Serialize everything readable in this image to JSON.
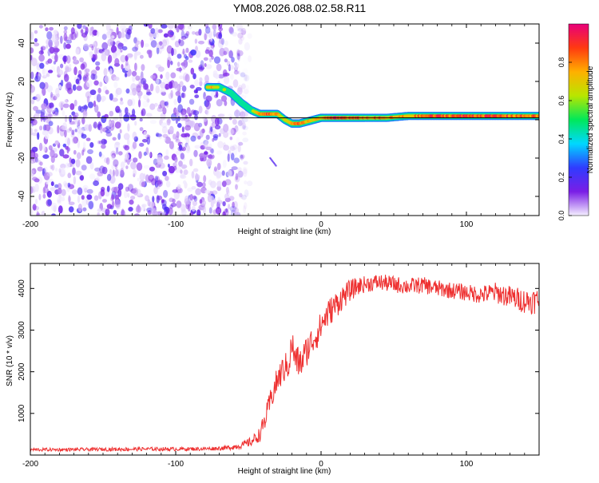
{
  "chart_data": [
    {
      "type": "heatmap",
      "title": "YM08.2026.088.02.58.R11",
      "xlabel": "Height of straight line (km)",
      "ylabel": "Frequency (Hz)",
      "xlim": [
        -200,
        150
      ],
      "ylim": [
        -50,
        50
      ],
      "xticks": [
        -200,
        -100,
        0,
        100
      ],
      "yticks": [
        -40,
        -20,
        0,
        20,
        40
      ],
      "xtick_labels": [
        "-200",
        "-100",
        "0",
        "100"
      ],
      "ytick_labels": [
        "-40",
        "-20",
        "0",
        "20",
        "40"
      ],
      "colorbar": {
        "label": "Normalized spectral amplitude",
        "range": [
          0,
          1
        ],
        "ticks": [
          0.0,
          0.2,
          0.4,
          0.6,
          0.8
        ],
        "tick_labels": [
          "0.0",
          "0.2",
          "0.4",
          "0.6",
          "0.8"
        ],
        "colors": [
          "#f4f0ff",
          "#7a1ee6",
          "#2f3cff",
          "#00d8ff",
          "#00e85a",
          "#b8e600",
          "#ffb000",
          "#ff3a10",
          "#e8007a"
        ]
      },
      "noise_region": {
        "x_range": [
          -200,
          -57
        ],
        "freq_range": [
          -50,
          50
        ]
      },
      "reference_line": {
        "x": [
          -200,
          150
        ],
        "y": [
          1,
          1
        ],
        "color": "#000000"
      },
      "doppler_track": {
        "x": [
          -78,
          -70,
          -62,
          -55,
          -48,
          -42,
          -36,
          -30,
          -25,
          -20,
          -15,
          -10,
          -5,
          0,
          10,
          20,
          30,
          45,
          60,
          75,
          90,
          105,
          120,
          135,
          150
        ],
        "y": [
          17,
          17,
          14,
          9,
          5,
          3,
          3,
          3,
          0,
          -2,
          -2,
          -1,
          0,
          1,
          1,
          1,
          1,
          1,
          2,
          2,
          2,
          2,
          2,
          2,
          2
        ],
        "amplitude": [
          0.8,
          0.55,
          0.5,
          0.45,
          0.5,
          0.75,
          0.85,
          0.7,
          0.6,
          0.7,
          0.85,
          0.75,
          0.7,
          0.7,
          0.88,
          0.82,
          0.78,
          0.75,
          0.72,
          0.85,
          0.85,
          0.88,
          0.85,
          0.82,
          0.8
        ]
      },
      "artifact": {
        "x": [
          -35,
          -31
        ],
        "y": [
          -20,
          -24
        ]
      }
    },
    {
      "type": "line",
      "xlabel": "Height of straight line (km)",
      "ylabel": "SNR (10 * v/v)",
      "xlim": [
        -200,
        150
      ],
      "ylim": [
        0,
        4600
      ],
      "xticks": [
        -200,
        -100,
        0,
        100
      ],
      "yticks": [
        1000,
        2000,
        3000,
        4000
      ],
      "xtick_labels": [
        "-200",
        "-100",
        "0",
        "100"
      ],
      "ytick_labels": [
        "1000",
        "2000",
        "3000",
        "4000"
      ],
      "color": "#ee3030",
      "series": [
        {
          "name": "SNR",
          "x": [
            -200,
            -180,
            -160,
            -140,
            -120,
            -100,
            -80,
            -65,
            -55,
            -48,
            -42,
            -38,
            -34,
            -30,
            -26,
            -22,
            -20,
            -18,
            -14,
            -10,
            -6,
            -2,
            2,
            6,
            10,
            15,
            20,
            25,
            30,
            40,
            50,
            60,
            70,
            80,
            90,
            100,
            110,
            120,
            130,
            140,
            150
          ],
          "y": [
            130,
            130,
            135,
            140,
            145,
            145,
            150,
            170,
            230,
            320,
            500,
            900,
            1400,
            1800,
            2050,
            2200,
            2700,
            2300,
            2200,
            2500,
            2750,
            2950,
            3250,
            3450,
            3600,
            3800,
            3950,
            4050,
            4100,
            4150,
            4100,
            4050,
            4080,
            4000,
            3950,
            3900,
            3850,
            3900,
            3800,
            3700,
            3700
          ],
          "noise": [
            40,
            40,
            40,
            45,
            45,
            45,
            45,
            55,
            80,
            110,
            180,
            260,
            300,
            330,
            350,
            350,
            380,
            380,
            380,
            380,
            370,
            360,
            350,
            340,
            330,
            300,
            260,
            220,
            200,
            200,
            200,
            200,
            200,
            200,
            200,
            200,
            220,
            250,
            270,
            300,
            320
          ]
        }
      ]
    }
  ]
}
